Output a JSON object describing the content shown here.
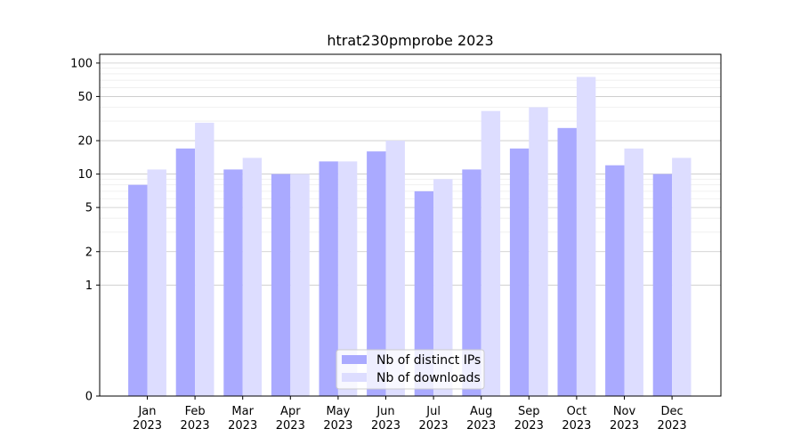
{
  "chart_data": {
    "type": "bar",
    "title": "htrat230pmprobe 2023",
    "xlabel": "",
    "ylabel": "",
    "y_scale": "symlog",
    "ylim": [
      0,
      120
    ],
    "y_ticks": [
      0,
      1,
      2,
      5,
      10,
      20,
      50,
      100
    ],
    "categories": [
      "Jan\n2023",
      "Feb\n2023",
      "Mar\n2023",
      "Apr\n2023",
      "May\n2023",
      "Jun\n2023",
      "Jul\n2023",
      "Aug\n2023",
      "Sep\n2023",
      "Oct\n2023",
      "Nov\n2023",
      "Dec\n2023"
    ],
    "series": [
      {
        "name": "Nb of distinct IPs",
        "color": "#aaaaff",
        "values": [
          8,
          17,
          11,
          10,
          13,
          16,
          7,
          11,
          17,
          26,
          12,
          10
        ]
      },
      {
        "name": "Nb of downloads",
        "color": "#ddddff",
        "values": [
          11,
          29,
          14,
          10,
          13,
          20,
          9,
          37,
          40,
          75,
          17,
          14
        ]
      }
    ],
    "grid": "horizontal",
    "legend_position": "bottom-center"
  }
}
